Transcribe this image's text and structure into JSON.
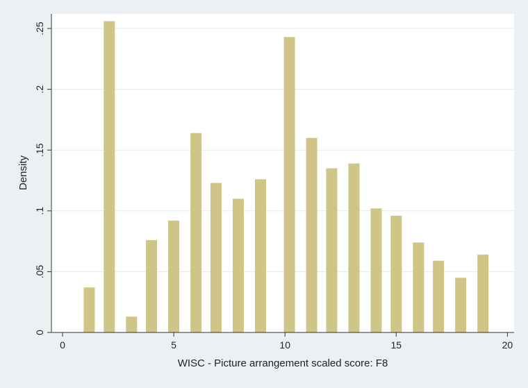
{
  "chart_data": {
    "type": "bar",
    "xlabel": "WISC - Picture arrangement scaled score: F8",
    "ylabel": "Density",
    "xlim": [
      -0.5,
      20.3
    ],
    "ylim": [
      0,
      0.262
    ],
    "x_ticks": [
      {
        "value": 0,
        "label": "0"
      },
      {
        "value": 5,
        "label": "5"
      },
      {
        "value": 10,
        "label": "10"
      },
      {
        "value": 15,
        "label": "15"
      },
      {
        "value": 20,
        "label": "20"
      }
    ],
    "y_ticks": [
      {
        "value": 0,
        "label": "0"
      },
      {
        "value": 0.05,
        "label": ".05"
      },
      {
        "value": 0.1,
        "label": ".1"
      },
      {
        "value": 0.15,
        "label": ".15"
      },
      {
        "value": 0.2,
        "label": ".2"
      },
      {
        "value": 0.25,
        "label": ".25"
      }
    ],
    "grid": true,
    "bar_color": "#cfc587",
    "series": [
      {
        "x": [
          1.2,
          2.1,
          3.1,
          4.0,
          5.0,
          6.0,
          6.9,
          7.9,
          8.9,
          10.2,
          11.2,
          12.1,
          13.1,
          14.1,
          15.0,
          16.0,
          16.9,
          17.9,
          18.9
        ],
        "values": [
          0.037,
          0.256,
          0.013,
          0.076,
          0.092,
          0.164,
          0.123,
          0.11,
          0.126,
          0.243,
          0.16,
          0.135,
          0.139,
          0.102,
          0.096,
          0.074,
          0.059,
          0.045,
          0.064
        ]
      }
    ]
  }
}
